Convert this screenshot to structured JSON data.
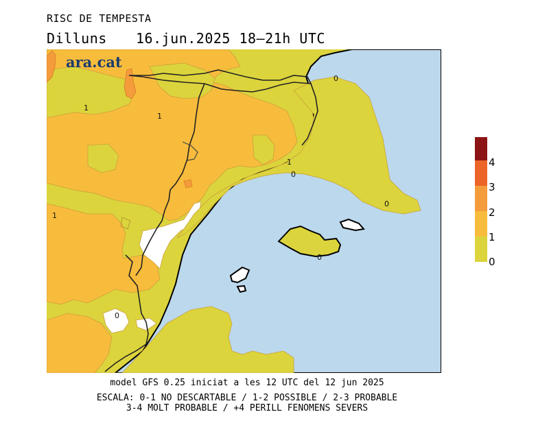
{
  "header": {
    "title": "RISC DE TEMPESTA",
    "day": "Dilluns",
    "datetime": "16.jun.2025 18–21h UTC"
  },
  "logo": {
    "text": "ara.cat"
  },
  "legend": {
    "ticks": [
      "0",
      "1",
      "2",
      "3",
      "4"
    ],
    "colors": [
      "#dcd43c",
      "#f8bc3c",
      "#f49c3c",
      "#ec6428",
      "#8c1414"
    ]
  },
  "map": {
    "sea_color": "#bcd8ec",
    "contour_labels": [
      "0",
      "1",
      "1",
      "1",
      "1",
      "0",
      "0",
      "0",
      "0"
    ]
  },
  "footer": {
    "model": "model GFS 0.25 iniciat a les 12 UTC del 12 jun 2025",
    "scale_line1": "ESCALA: 0-1 NO DESCARTABLE / 1-2 POSSIBLE / 2-3 PROBABLE",
    "scale_line2": "3-4 MOLT PROBABLE / +4 PERILL FENOMENS SEVERS"
  }
}
